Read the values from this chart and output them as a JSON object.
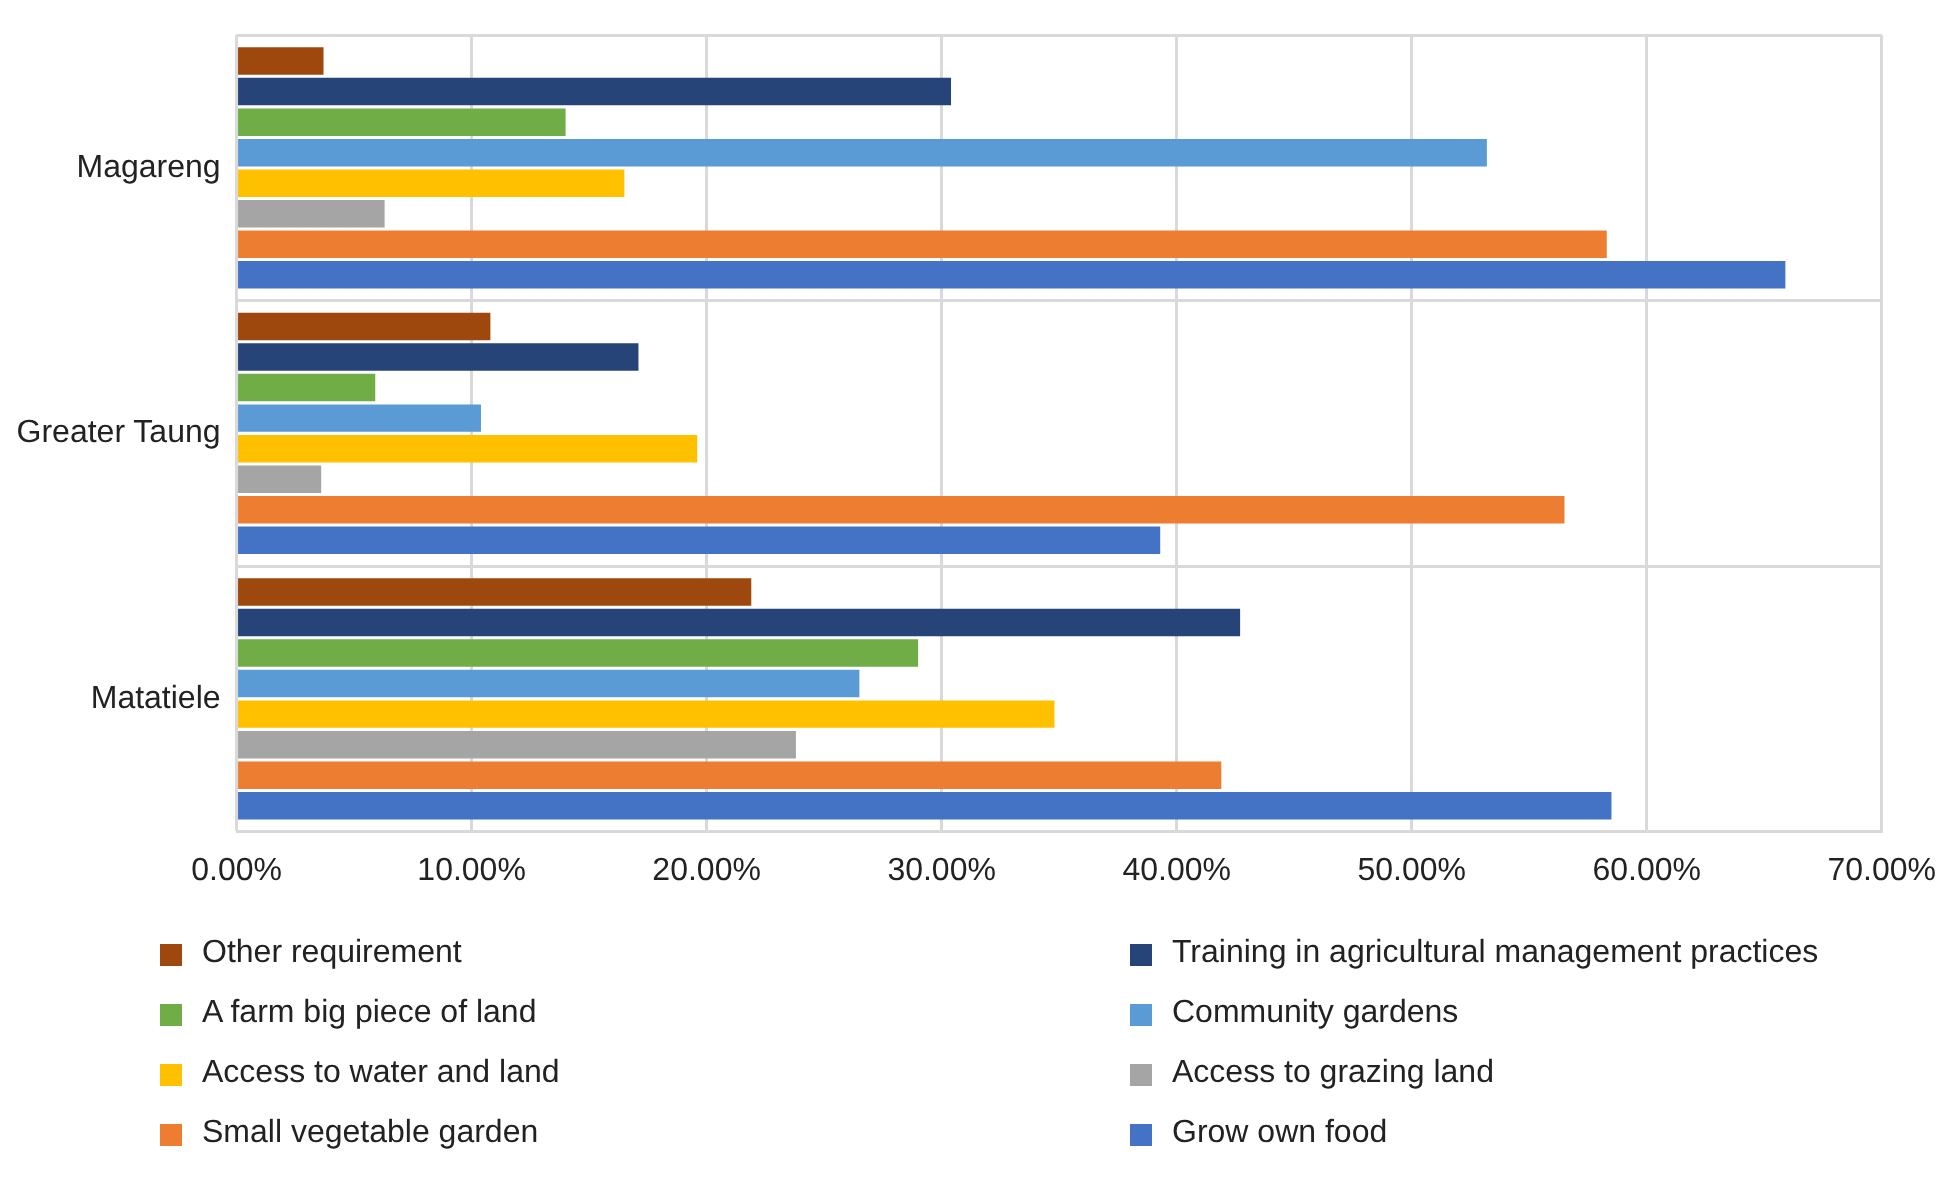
{
  "chart_data": {
    "type": "bar",
    "orientation": "horizontal",
    "categories": [
      "Magareng",
      "Greater Taung",
      "Matatiele"
    ],
    "series": [
      {
        "name": "Other requirement",
        "color": "#9e480e",
        "values": [
          3.7,
          10.8,
          21.9
        ]
      },
      {
        "name": "Training in agricultural management practices",
        "color": "#264478",
        "values": [
          30.4,
          17.1,
          42.7
        ]
      },
      {
        "name": "A farm big piece of land",
        "color": "#70ad47",
        "values": [
          14.0,
          5.9,
          29.0
        ]
      },
      {
        "name": "Community gardens",
        "color": "#5b9bd5",
        "values": [
          53.2,
          10.4,
          26.5
        ]
      },
      {
        "name": "Access to water and land",
        "color": "#ffc000",
        "values": [
          16.5,
          19.6,
          34.8
        ]
      },
      {
        "name": "Access to grazing land",
        "color": "#a5a5a5",
        "values": [
          6.3,
          3.6,
          23.8
        ]
      },
      {
        "name": "Small vegetable garden",
        "color": "#ed7d31",
        "values": [
          58.3,
          56.5,
          41.9
        ]
      },
      {
        "name": "Grow own food",
        "color": "#4472c4",
        "values": [
          65.9,
          39.3,
          58.5
        ]
      }
    ],
    "xlim": [
      0,
      70
    ],
    "xticks": [
      {
        "value": 0,
        "label": "0.00%"
      },
      {
        "value": 10,
        "label": "10.00%"
      },
      {
        "value": 20,
        "label": "20.00%"
      },
      {
        "value": 30,
        "label": "30.00%"
      },
      {
        "value": 40,
        "label": "40.00%"
      },
      {
        "value": 50,
        "label": "50.00%"
      },
      {
        "value": 60,
        "label": "60.00%"
      },
      {
        "value": 70,
        "label": "70.00%"
      }
    ],
    "grid": true,
    "legend": "bottom"
  }
}
